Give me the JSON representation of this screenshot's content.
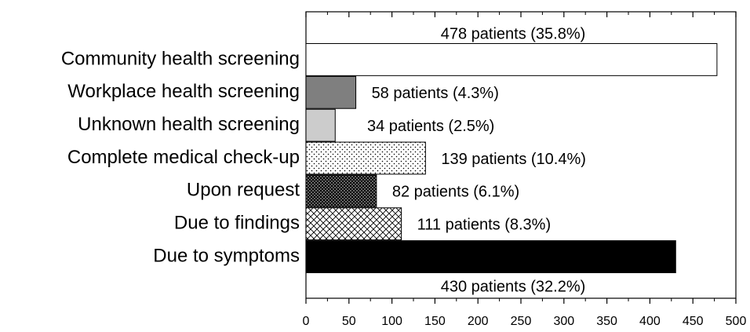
{
  "chart_data": {
    "type": "barh",
    "categories": [
      "Community health screening",
      "Workplace health screening",
      "Unknown health screening",
      "Complete medical check-up",
      "Upon request",
      "Due to findings",
      "Due to symptoms"
    ],
    "values": [
      478,
      58,
      34,
      139,
      82,
      111,
      430
    ],
    "value_labels": [
      "478 patients (35.8%)",
      "58 patients (4.3%)",
      "34 patients (2.5%)",
      "139 patients (10.4%)",
      "82 patients (6.1%)",
      "111 patients (8.3%)",
      "430 patients (32.2%)"
    ],
    "colors": [
      "#ffffff",
      "#7f7f7f",
      "#cccccc",
      "#ffffff",
      "#000000",
      "#ffffff",
      "#000000"
    ],
    "patterns": [
      "solid",
      "solid",
      "solid",
      "dots",
      "dense-dots",
      "crosshatch",
      "solid"
    ],
    "xlim": [
      0,
      500
    ],
    "xticks": [
      0,
      50,
      100,
      150,
      200,
      250,
      300,
      350,
      400,
      450,
      500
    ],
    "grid": false
  }
}
